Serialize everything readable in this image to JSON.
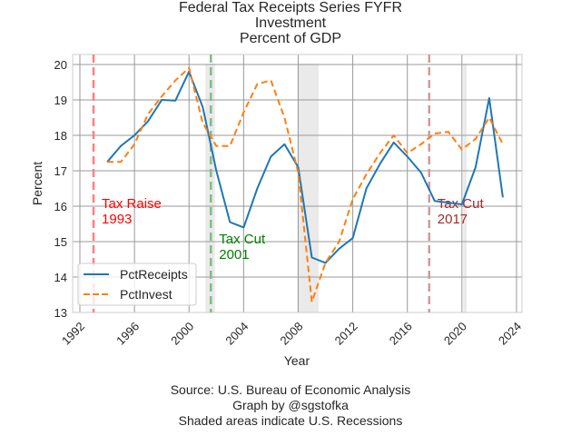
{
  "chart_data": {
    "type": "line",
    "title": [
      "Federal Tax Receipts Series FYFR",
      "Investment",
      "Percent of GDP"
    ],
    "xlabel": "Year",
    "ylabel": "Percent",
    "xlim": [
      1991.9,
      2024.4
    ],
    "ylim": [
      13,
      20.25
    ],
    "xticks": [
      1992,
      1996,
      2000,
      2004,
      2008,
      2012,
      2016,
      2020,
      2024
    ],
    "yticks": [
      13,
      14,
      15,
      16,
      17,
      18,
      19,
      20
    ],
    "grid": true,
    "legend_position": "lower-left",
    "x": [
      1994,
      1995,
      1996,
      1997,
      1998,
      1999,
      2000,
      2001,
      2002,
      2003,
      2004,
      2005,
      2006,
      2007,
      2008,
      2009,
      2010,
      2011,
      2012,
      2013,
      2014,
      2015,
      2016,
      2017,
      2018,
      2019,
      2020,
      2021,
      2022,
      2023
    ],
    "series": [
      {
        "name": "PctReceipts",
        "color": "#1f77b4",
        "style": "solid",
        "values": [
          17.25,
          17.7,
          18.0,
          18.4,
          19.0,
          18.98,
          19.8,
          18.8,
          17.0,
          15.55,
          15.4,
          16.5,
          17.4,
          17.75,
          17.1,
          14.55,
          14.4,
          14.8,
          15.1,
          16.5,
          17.2,
          17.8,
          17.4,
          16.95,
          16.15,
          16.1,
          16.05,
          17.1,
          19.05,
          16.25
        ]
      },
      {
        "name": "PctInvest",
        "color": "#ff7f0e",
        "style": "dashed",
        "values": [
          17.25,
          17.25,
          17.75,
          18.6,
          19.1,
          19.55,
          19.9,
          18.35,
          17.7,
          17.7,
          18.65,
          19.45,
          19.55,
          18.5,
          16.95,
          13.3,
          14.4,
          15.0,
          16.2,
          16.9,
          17.5,
          18.0,
          17.5,
          17.75,
          18.05,
          18.1,
          17.6,
          17.9,
          18.5,
          17.75
        ]
      }
    ],
    "recessions": [
      {
        "start": 2001.2,
        "end": 2001.9
      },
      {
        "start": 2007.95,
        "end": 2009.5
      },
      {
        "start": 2020.1,
        "end": 2020.35
      }
    ],
    "events": [
      {
        "year": 1993.0,
        "label_line1": "Tax Raise",
        "label_line2": "1993",
        "line_color": "#ff8080",
        "text_color": "#ff0000",
        "label_y": 15.9
      },
      {
        "year": 2001.6,
        "label_line1": "Tax Cut",
        "label_line2": "2001",
        "line_color": "#7fbf7f",
        "text_color": "#008000",
        "label_y": 14.9
      },
      {
        "year": 2017.6,
        "label_line1": "Tax Cut",
        "label_line2": "2017",
        "line_color": "#d09a9a",
        "text_color": "#a52a2a",
        "label_y": 15.9
      }
    ],
    "source_lines": [
      "Source: U.S. Bureau of Economic Analysis",
      "Graph by @sgstofka",
      "Shaded areas indicate U.S. Recessions"
    ]
  }
}
